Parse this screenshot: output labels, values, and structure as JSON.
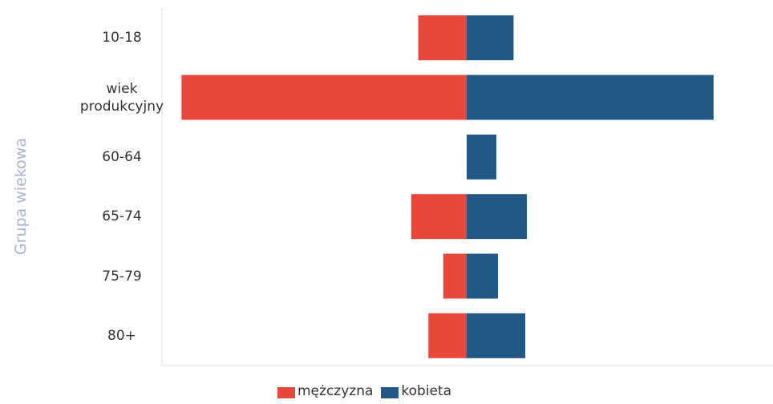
{
  "chart_data": {
    "type": "butterfly",
    "y_axis_label": "Grupa wiekowa",
    "categories": [
      "10-18",
      "wiek produkcyjny",
      "60-64",
      "65-74",
      "75-79",
      "80+"
    ],
    "series": [
      {
        "name": "mężczyzna",
        "color": "#e8483c",
        "side": "left",
        "values": [
          62,
          365,
          0,
          71,
          30,
          49
        ]
      },
      {
        "name": "kobieta",
        "color": "#215886",
        "side": "right",
        "values": [
          60,
          316,
          38,
          77,
          40,
          75
        ]
      }
    ],
    "xlim": [
      -390,
      390
    ]
  }
}
